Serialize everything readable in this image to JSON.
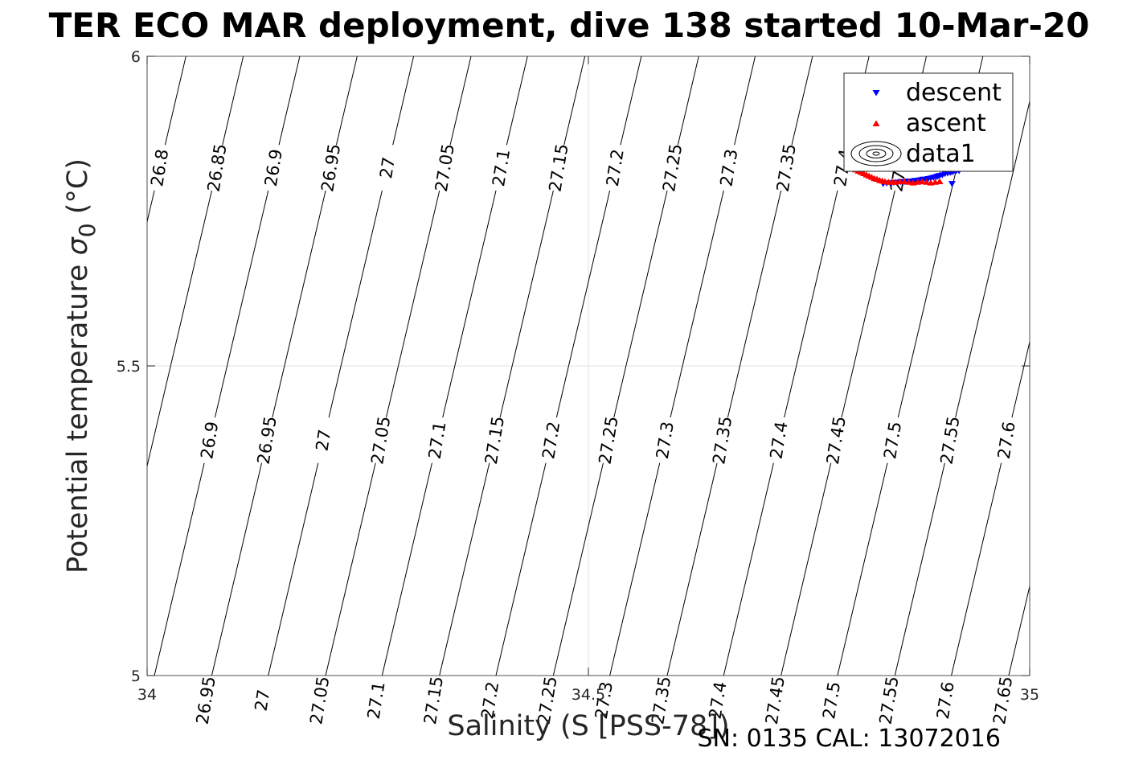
{
  "chart_data": {
    "type": "scatter",
    "title": "TER ECO MAR deployment, dive 138 started 10-Mar-20",
    "xlabel": "Salinity (S [PSS-78])",
    "ylabel_text": "Potential temperature ",
    "ylabel_sigma": "σ",
    "ylabel_sub": "0",
    "ylabel_unit": " (°C)",
    "xlim": [
      34,
      35
    ],
    "ylim": [
      5,
      6
    ],
    "x_ticks": [
      34,
      34.5,
      35
    ],
    "x_tick_labels": [
      "34",
      "34.5",
      "35"
    ],
    "y_ticks": [
      5,
      5.5,
      6
    ],
    "y_tick_labels": [
      "5",
      "5.5",
      "6"
    ],
    "grid": true,
    "legend_position": "top-right",
    "series": [
      {
        "name": "descent",
        "color": "#0000ff",
        "marker": "triangle-down",
        "x": [
          34.834,
          34.838,
          34.842,
          34.846,
          34.85,
          34.854,
          34.858,
          34.862,
          34.866,
          34.87,
          34.873,
          34.876,
          34.879,
          34.882,
          34.885,
          34.888,
          34.891,
          34.894,
          34.896,
          34.898,
          34.901,
          34.904,
          34.907,
          34.91,
          34.912,
          34.914,
          34.917,
          34.92,
          34.912
        ],
        "y": [
          5.794,
          5.795,
          5.795,
          5.796,
          5.796,
          5.797,
          5.797,
          5.798,
          5.798,
          5.799,
          5.799,
          5.8,
          5.801,
          5.801,
          5.802,
          5.803,
          5.804,
          5.805,
          5.806,
          5.807,
          5.808,
          5.81,
          5.811,
          5.812,
          5.813,
          5.814,
          5.815,
          5.815,
          5.794
        ]
      },
      {
        "name": "ascent",
        "color": "#ff0000",
        "marker": "triangle-up",
        "x": [
          34.794,
          34.797,
          34.8,
          34.803,
          34.806,
          34.809,
          34.812,
          34.815,
          34.818,
          34.821,
          34.824,
          34.827,
          34.83,
          34.833,
          34.836,
          34.84,
          34.844,
          34.848,
          34.853,
          34.858,
          34.863,
          34.868,
          34.873,
          34.878,
          34.883,
          34.888,
          34.893,
          34.898
        ],
        "y": [
          5.824,
          5.821,
          5.819,
          5.817,
          5.815,
          5.813,
          5.811,
          5.809,
          5.807,
          5.805,
          5.803,
          5.802,
          5.8,
          5.799,
          5.798,
          5.797,
          5.797,
          5.797,
          5.798,
          5.798,
          5.797,
          5.796,
          5.797,
          5.798,
          5.797,
          5.796,
          5.797,
          5.798
        ]
      },
      {
        "name": "data1",
        "color": "#000000",
        "marker": "contour"
      }
    ],
    "contour_levels": [
      "26.8",
      "26.85",
      "26.9",
      "26.95",
      "27",
      "27.05",
      "27.1",
      "27.15",
      "27.2",
      "27.25",
      "27.3",
      "27.35",
      "27.4",
      "27.45",
      "27.5",
      "27.55",
      "27.6",
      "27.65"
    ],
    "contour_x_at_t6": [
      34.044,
      34.109,
      34.173,
      34.238,
      34.302,
      34.367,
      34.431,
      34.496,
      34.56,
      34.625,
      34.689,
      34.754,
      34.818,
      34.883,
      34.947,
      35.012,
      35.076,
      35.141
    ],
    "contour_slope_dT_dS": 6.07
  },
  "footer": {
    "serial": "SN: 0135  CAL: 13072016"
  }
}
